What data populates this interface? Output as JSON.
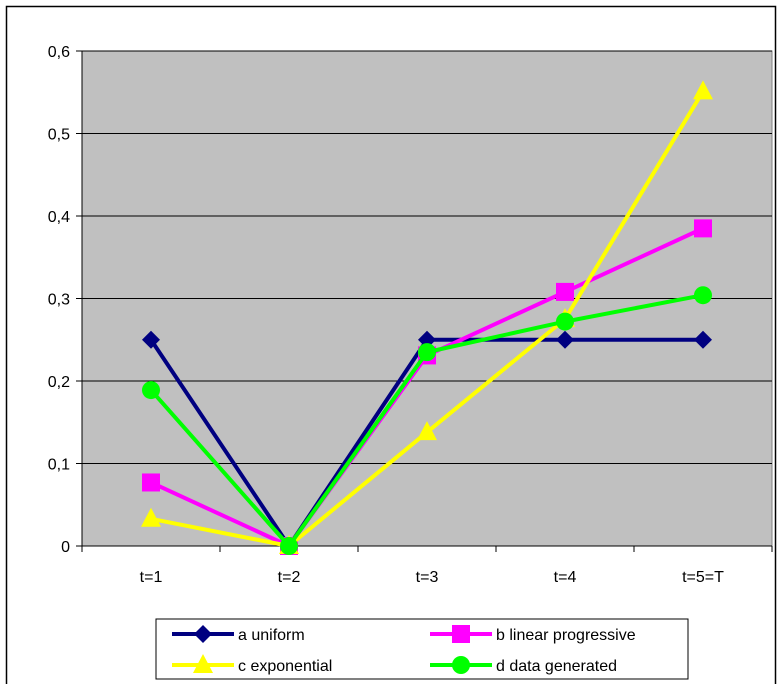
{
  "chart_data": {
    "type": "line",
    "categories": [
      "t=1",
      "t=2",
      "t=3",
      "t=4",
      "t=5=T"
    ],
    "ylim": [
      0,
      0.6
    ],
    "yticks": [
      0,
      0.1,
      0.2,
      0.3,
      0.4,
      0.5,
      0.6
    ],
    "ytick_labels": [
      "0",
      "0,1",
      "0,2",
      "0,3",
      "0,4",
      "0,5",
      "0,6"
    ],
    "grid": true,
    "legend_position": "bottom",
    "plot_background": "#c0c0c0",
    "series": [
      {
        "name": "a uniform",
        "color": "#000080",
        "marker": "diamond",
        "values": [
          0.25,
          0.0,
          0.25,
          0.25,
          0.25
        ]
      },
      {
        "name": "b linear progressive",
        "color": "#ff00ff",
        "marker": "square",
        "values": [
          0.077,
          0.0,
          0.231,
          0.308,
          0.385
        ]
      },
      {
        "name": "c exponential",
        "color": "#ffff00",
        "marker": "triangle",
        "values": [
          0.033,
          0.0,
          0.138,
          0.275,
          0.551
        ]
      },
      {
        "name": "d data generated",
        "color": "#00ff00",
        "marker": "circle",
        "values": [
          0.189,
          0.0,
          0.235,
          0.272,
          0.304
        ]
      }
    ]
  }
}
